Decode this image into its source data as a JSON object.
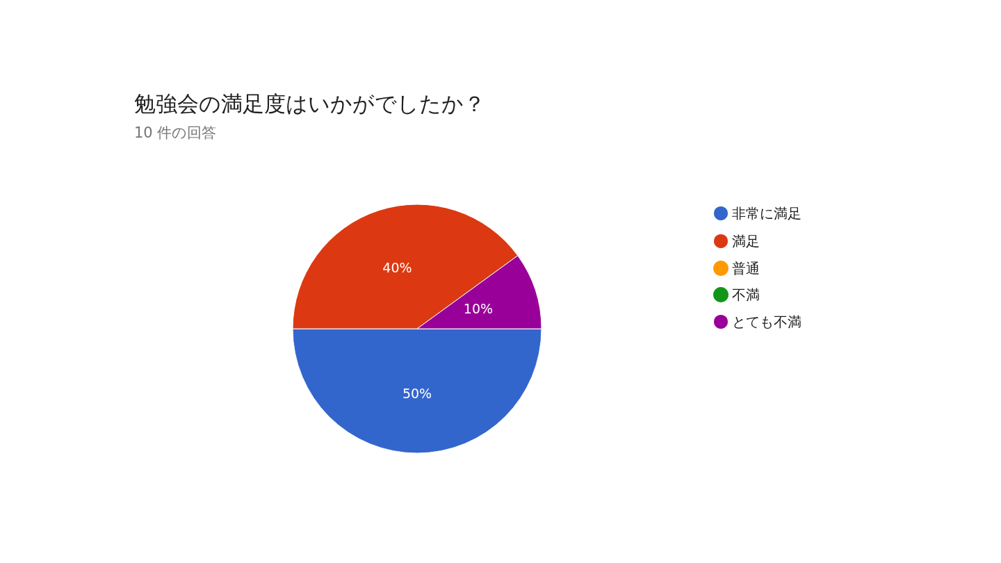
{
  "chart_data": {
    "type": "pie",
    "title": "勉強会の満足度はいかがでしたか？",
    "subtitle": "10 件の回答",
    "categories": [
      "非常に満足",
      "満足",
      "普通",
      "不満",
      "とても不満"
    ],
    "values": [
      50,
      40,
      0,
      0,
      10
    ],
    "colors": [
      "#3366cc",
      "#dc3912",
      "#ff9900",
      "#109618",
      "#990099"
    ],
    "value_labels": [
      "50%",
      "40%",
      null,
      null,
      "10%"
    ],
    "legend": "right"
  }
}
